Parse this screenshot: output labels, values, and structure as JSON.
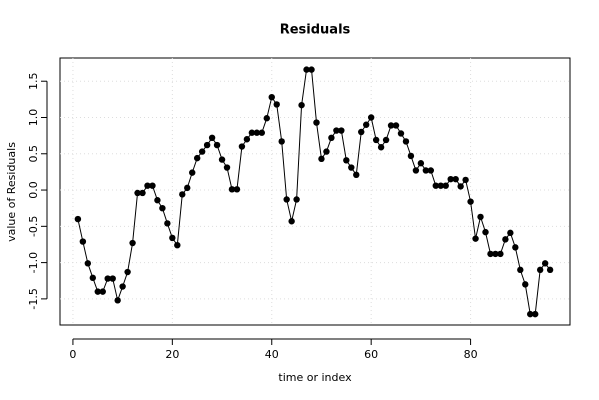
{
  "chart_data": {
    "type": "line",
    "title": "Residuals",
    "x_label": "time or index",
    "y_label": "value of Residuals",
    "x": [
      1,
      2,
      3,
      4,
      5,
      6,
      7,
      8,
      9,
      10,
      11,
      12,
      13,
      14,
      15,
      16,
      17,
      18,
      19,
      20,
      21,
      22,
      23,
      24,
      25,
      26,
      27,
      28,
      29,
      30,
      31,
      32,
      33,
      34,
      35,
      36,
      37,
      38,
      39,
      40,
      41,
      42,
      43,
      44,
      45,
      46,
      47,
      48,
      49,
      50,
      51,
      52,
      53,
      54,
      55,
      56,
      57,
      58,
      59,
      60,
      61,
      62,
      63,
      64,
      65,
      66,
      67,
      68,
      69,
      70,
      71,
      72,
      73,
      74,
      75,
      76,
      77,
      78,
      79,
      80,
      81,
      82,
      83,
      84,
      85,
      86,
      87,
      88,
      89,
      90,
      91,
      92,
      93,
      94,
      95,
      96
    ],
    "values": [
      -0.4,
      -0.71,
      -1.01,
      -1.21,
      -1.4,
      -1.4,
      -1.22,
      -1.22,
      -1.52,
      -1.33,
      -1.13,
      -0.73,
      -0.04,
      -0.04,
      0.06,
      0.06,
      -0.14,
      -0.25,
      -0.46,
      -0.66,
      -0.76,
      -0.06,
      0.03,
      0.24,
      0.44,
      0.53,
      0.62,
      0.72,
      0.62,
      0.42,
      0.31,
      0.01,
      0.01,
      0.6,
      0.7,
      0.79,
      0.79,
      0.79,
      0.99,
      1.28,
      1.18,
      0.67,
      -0.13,
      -0.43,
      -0.13,
      1.17,
      1.66,
      1.66,
      0.93,
      0.43,
      0.53,
      0.72,
      0.82,
      0.82,
      0.41,
      0.31,
      0.21,
      0.8,
      0.9,
      1.0,
      0.69,
      0.59,
      0.69,
      0.89,
      0.89,
      0.78,
      0.67,
      0.47,
      0.27,
      0.37,
      0.27,
      0.27,
      0.06,
      0.06,
      0.06,
      0.15,
      0.15,
      0.05,
      0.14,
      -0.16,
      -0.67,
      -0.37,
      -0.58,
      -0.88,
      -0.88,
      -0.88,
      -0.68,
      -0.59,
      -0.79,
      -1.1,
      -1.3,
      -1.71,
      -1.71,
      -1.1,
      -1.01,
      -1.1
    ],
    "color": "#000000",
    "xlim": [
      -2.6,
      100
    ],
    "ylim": [
      -1.86,
      1.82
    ],
    "xticks": [
      0,
      20,
      40,
      60,
      80
    ],
    "yticks": [
      -1.5,
      {
        "value": -1,
        "label": "-1.0"
      },
      -0.5,
      {
        "value": 0,
        "label": "0.0"
      },
      0.5,
      {
        "value": 1,
        "label": "1.0"
      },
      1.5
    ],
    "grid": true
  }
}
